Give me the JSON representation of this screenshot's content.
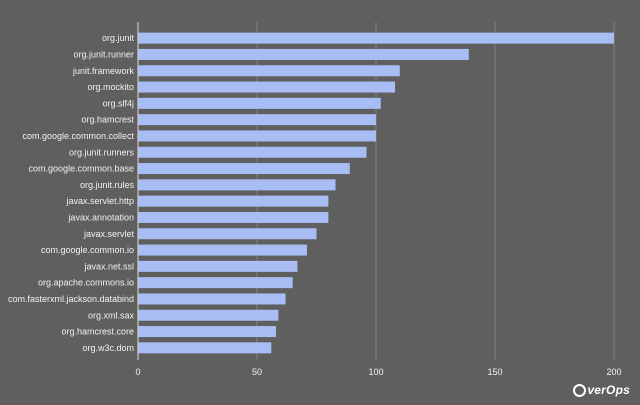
{
  "chart_data": {
    "type": "bar",
    "orientation": "horizontal",
    "categories": [
      "org.junit",
      "org.junit.runner",
      "junit.framework",
      "org.mockito",
      "org.slf4j",
      "org.hamcrest",
      "com.google.common.collect",
      "org.junit.runners",
      "com.google.common.base",
      "org.junit.rules",
      "javax.servlet.http",
      "javax.annotation",
      "javax.servlet",
      "com.google.common.io",
      "javax.net.ssl",
      "org.apache.commons.io",
      "com.fasterxml.jackson.databind",
      "org.xml.sax",
      "org.hamcrest.core",
      "org.w3c.dom"
    ],
    "values": [
      200,
      139,
      110,
      108,
      102,
      100,
      100,
      96,
      89,
      83,
      80,
      80,
      75,
      71,
      67,
      65,
      62,
      59,
      58,
      56
    ],
    "xlim": [
      0,
      200
    ],
    "xticks": [
      "0",
      "50",
      "100",
      "150",
      "200"
    ],
    "grid": true,
    "bar_color": "#a9bdf5"
  },
  "branding": {
    "logo_text": "verOps"
  }
}
